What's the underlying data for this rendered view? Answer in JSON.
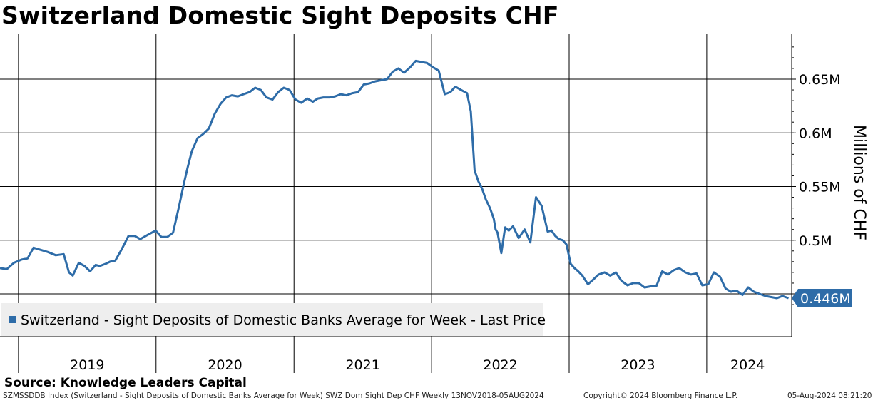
{
  "title": "Switzerland Domestic Sight Deposits CHF",
  "source": "Source: Knowledge Leaders Capital",
  "footer": {
    "left": "SZMSSDDB Index (Switzerland - Sight Deposits of Domestic Banks Average for Week) SWZ Dom Sight Dep CHF  Weekly 13NOV2018-05AUG2024",
    "middle": "Copyright© 2024 Bloomberg Finance L.P.",
    "right": "05-Aug-2024 08:21:20"
  },
  "colors": {
    "line": "#2e6ca8",
    "last_price_badge": "#2e6ca8",
    "grid": "#000000",
    "legend_bg": "#eeeeee"
  },
  "chart_data": {
    "type": "line",
    "ylabel": "Millions of CHF",
    "ylim": [
      0.43,
      0.69
    ],
    "y_ticks": [
      0.45,
      0.5,
      0.55,
      0.6,
      0.65
    ],
    "y_tick_labels": [
      "0.45M",
      "0.5M",
      "0.55M",
      "0.6M",
      "0.65M"
    ],
    "x_years": [
      "2019",
      "2020",
      "2021",
      "2022",
      "2023",
      "2024"
    ],
    "x_range": [
      "2018-11-13",
      "2024-08-05"
    ],
    "grid": true,
    "legend": {
      "placement": "bottom-left",
      "entries": [
        "Switzerland - Sight Deposits of Domestic Banks Average for Week - Last Price"
      ]
    },
    "last_value": 0.446,
    "last_value_label": "0.446M",
    "series": [
      {
        "name": "Switzerland - Sight Deposits of Domestic Banks Average for Week - Last Price",
        "x": [
          "2018-11-13",
          "2018-12-01",
          "2018-12-20",
          "2019-01-10",
          "2019-01-25",
          "2019-02-10",
          "2019-03-01",
          "2019-03-20",
          "2019-04-10",
          "2019-05-01",
          "2019-05-15",
          "2019-05-25",
          "2019-06-10",
          "2019-06-25",
          "2019-07-10",
          "2019-07-25",
          "2019-08-05",
          "2019-08-20",
          "2019-09-01",
          "2019-09-15",
          "2019-10-01",
          "2019-10-20",
          "2019-11-05",
          "2019-11-20",
          "2019-12-10",
          "2019-12-31",
          "2020-01-15",
          "2020-01-31",
          "2020-02-15",
          "2020-03-01",
          "2020-03-15",
          "2020-03-25",
          "2020-04-05",
          "2020-04-20",
          "2020-05-05",
          "2020-05-20",
          "2020-06-05",
          "2020-06-20",
          "2020-07-05",
          "2020-07-20",
          "2020-08-05",
          "2020-08-20",
          "2020-09-05",
          "2020-09-20",
          "2020-10-05",
          "2020-10-20",
          "2020-11-05",
          "2020-11-20",
          "2020-12-05",
          "2020-12-20",
          "2021-01-05",
          "2021-01-20",
          "2021-02-05",
          "2021-02-20",
          "2021-03-05",
          "2021-03-20",
          "2021-04-05",
          "2021-04-20",
          "2021-05-05",
          "2021-05-20",
          "2021-06-05",
          "2021-06-20",
          "2021-07-05",
          "2021-07-20",
          "2021-08-05",
          "2021-08-20",
          "2021-09-05",
          "2021-09-20",
          "2021-10-05",
          "2021-10-20",
          "2021-11-05",
          "2021-11-20",
          "2021-12-05",
          "2021-12-20",
          "2022-01-05",
          "2022-01-20",
          "2022-02-05",
          "2022-02-20",
          "2022-03-05",
          "2022-03-20",
          "2022-04-05",
          "2022-04-15",
          "2022-04-25",
          "2022-05-05",
          "2022-05-15",
          "2022-05-25",
          "2022-06-05",
          "2022-06-15",
          "2022-06-20",
          "2022-06-25",
          "2022-07-05",
          "2022-07-15",
          "2022-07-25",
          "2022-08-05",
          "2022-08-20",
          "2022-09-05",
          "2022-09-20",
          "2022-10-05",
          "2022-10-20",
          "2022-11-05",
          "2022-11-15",
          "2022-11-25",
          "2022-12-05",
          "2022-12-15",
          "2022-12-25",
          "2023-01-05",
          "2023-01-15",
          "2023-01-25",
          "2023-02-05",
          "2023-02-20",
          "2023-03-05",
          "2023-03-20",
          "2023-04-05",
          "2023-04-20",
          "2023-05-05",
          "2023-05-20",
          "2023-06-05",
          "2023-06-20",
          "2023-07-05",
          "2023-07-20",
          "2023-08-05",
          "2023-08-20",
          "2023-09-05",
          "2023-09-20",
          "2023-10-05",
          "2023-10-20",
          "2023-11-05",
          "2023-11-20",
          "2023-12-05",
          "2023-12-20",
          "2024-01-05",
          "2024-01-20",
          "2024-02-05",
          "2024-02-20",
          "2024-03-05",
          "2024-03-20",
          "2024-04-05",
          "2024-04-20",
          "2024-05-05",
          "2024-05-20",
          "2024-06-05",
          "2024-06-20",
          "2024-07-05",
          "2024-07-20",
          "2024-08-05"
        ],
        "values": [
          0.474,
          0.473,
          0.479,
          0.482,
          0.483,
          0.493,
          0.491,
          0.489,
          0.486,
          0.487,
          0.47,
          0.467,
          0.479,
          0.476,
          0.471,
          0.477,
          0.476,
          0.478,
          0.48,
          0.481,
          0.491,
          0.504,
          0.504,
          0.501,
          0.505,
          0.509,
          0.503,
          0.503,
          0.507,
          0.53,
          0.553,
          0.568,
          0.583,
          0.595,
          0.599,
          0.604,
          0.618,
          0.627,
          0.633,
          0.635,
          0.634,
          0.636,
          0.638,
          0.642,
          0.64,
          0.633,
          0.631,
          0.638,
          0.642,
          0.64,
          0.631,
          0.628,
          0.632,
          0.629,
          0.632,
          0.633,
          0.633,
          0.634,
          0.636,
          0.635,
          0.637,
          0.638,
          0.645,
          0.646,
          0.648,
          0.649,
          0.65,
          0.657,
          0.66,
          0.656,
          0.661,
          0.667,
          0.666,
          0.665,
          0.661,
          0.658,
          0.636,
          0.638,
          0.643,
          0.64,
          0.637,
          0.62,
          0.565,
          0.555,
          0.548,
          0.538,
          0.53,
          0.52,
          0.51,
          0.507,
          0.488,
          0.512,
          0.509,
          0.513,
          0.502,
          0.51,
          0.498,
          0.54,
          0.532,
          0.508,
          0.509,
          0.504,
          0.501,
          0.5,
          0.496,
          0.478,
          0.474,
          0.471,
          0.467,
          0.459,
          0.463,
          0.468,
          0.47,
          0.467,
          0.47,
          0.462,
          0.458,
          0.46,
          0.46,
          0.456,
          0.457,
          0.457,
          0.471,
          0.468,
          0.472,
          0.474,
          0.47,
          0.468,
          0.469,
          0.458,
          0.459,
          0.47,
          0.466,
          0.455,
          0.452,
          0.453,
          0.449,
          0.456,
          0.452,
          0.45,
          0.448,
          0.447,
          0.446,
          0.448,
          0.446
        ]
      }
    ]
  }
}
